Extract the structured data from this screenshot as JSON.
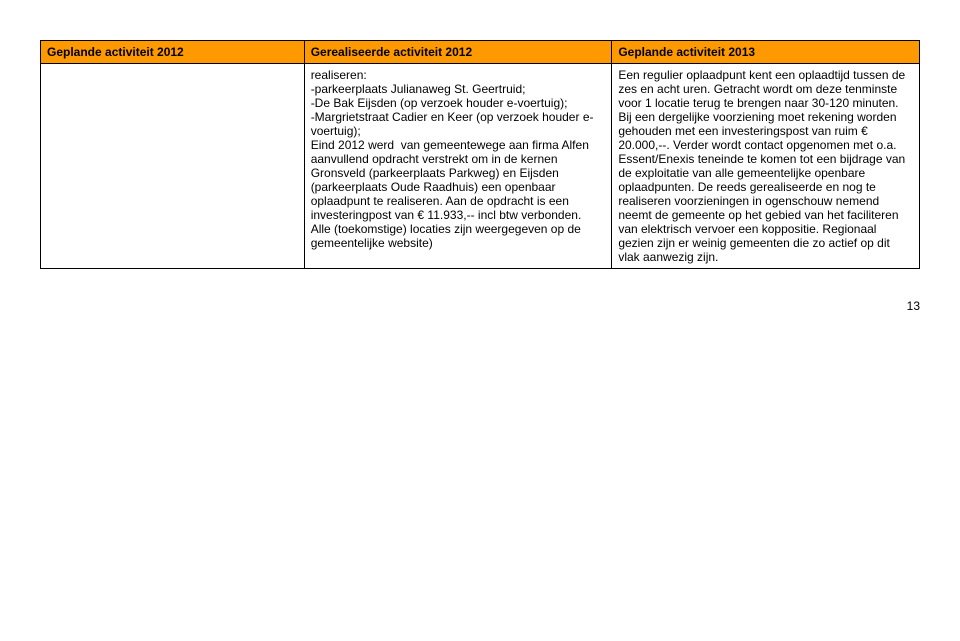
{
  "table": {
    "header_bg": "#ff9900",
    "header_color": "#000000",
    "columns": [
      "Geplande activiteit 2012",
      "Gerealiseerde activiteit 2012",
      "Geplande activiteit 2013"
    ],
    "row": {
      "col1": "",
      "col2": "realiseren:\n-parkeerplaats Julianaweg St. Geertruid;\n-De Bak Eijsden (op verzoek houder e-voertuig);\n-Margrietstraat Cadier en Keer (op verzoek houder e-voertuig);\nEind 2012 werd  van gemeentewege aan firma Alfen aanvullend opdracht verstrekt om in de kernen Gronsveld (parkeerplaats Parkweg) en Eijsden (parkeerplaats Oude Raadhuis) een openbaar oplaadpunt te realiseren. Aan de opdracht is een investeringpost van € 11.933,-- incl btw verbonden.\nAlle (toekomstige) locaties zijn weergegeven op de gemeentelijke website)",
      "col3": "Een regulier oplaadpunt kent een oplaadtijd tussen de zes en acht uren. Getracht wordt om deze tenminste voor 1 locatie terug te brengen naar 30-120 minuten. Bij een dergelijke voorziening moet rekening worden gehouden met een investeringspost van ruim € 20.000,--. Verder wordt contact opgenomen met o.a. Essent/Enexis teneinde te komen tot een bijdrage van de exploitatie van alle gemeentelijke openbare oplaadpunten. De reeds gerealiseerde en nog te realiseren voorzieningen in ogenschouw nemend neemt de gemeente op het gebied van het faciliteren van elektrisch vervoer een koppositie. Regionaal gezien zijn er weinig gemeenten die zo actief op dit vlak aanwezig zijn."
    }
  },
  "page_number": "13"
}
